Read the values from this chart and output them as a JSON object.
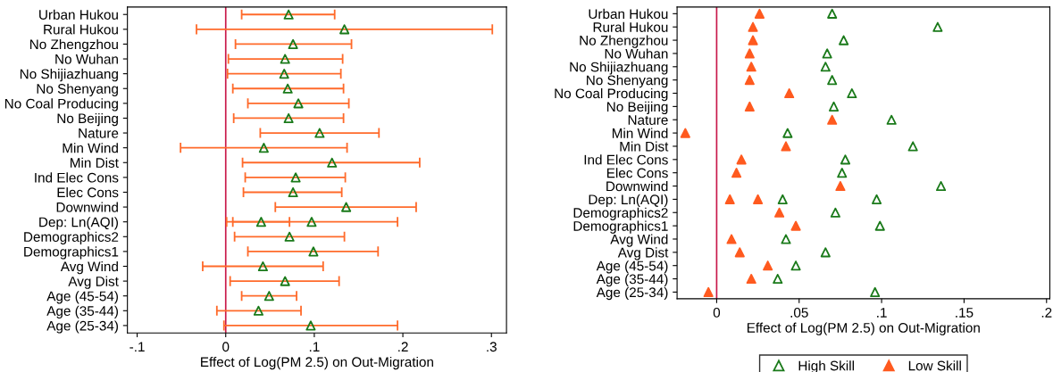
{
  "chart_data": [
    {
      "type": "scatter",
      "orientation": "horizontal",
      "xlabel": "Effect of Log(PM 2.5) on Out-Migration",
      "marker": "triangle",
      "grid": false,
      "legend": false,
      "categories": [
        "Urban Hukou",
        "Rural Hukou",
        "No Zhengzhou",
        "No Wuhan",
        "No Shijiazhuang",
        "No Shenyang",
        "No Coal Producing",
        "No Beijing",
        "Nature",
        "Min Wind",
        "Min Dist",
        "Ind Elec Cons",
        "Elec Cons",
        "Downwind",
        "Dep: Ln(AQI)",
        "Demographics2",
        "Demographics1",
        "Avg Wind",
        "Avg Dist",
        "Age (45-54)",
        "Age (35-44)",
        "Age (25-34)"
      ],
      "xlim": [
        -0.111,
        0.317
      ],
      "xticks": [
        {
          "value": -0.1,
          "label": "-.1"
        },
        0,
        {
          "value": 0.1,
          "label": ".1"
        },
        {
          "value": 0.2,
          "label": ".2"
        },
        {
          "value": 0.3,
          "label": ".3"
        }
      ],
      "ref_lines": [
        {
          "axis": "x",
          "value": 0,
          "color": "#c8184a"
        }
      ],
      "series": [
        {
          "color": "#1a7a1a",
          "values": [
            0.071,
            0.134,
            0.076,
            0.067,
            0.066,
            0.07,
            0.082,
            0.071,
            0.106,
            0.043,
            0.12,
            0.079,
            0.076,
            0.136,
            0.04,
            0.072,
            0.099,
            0.042,
            0.067,
            0.049,
            0.037,
            0.096
          ],
          "errors": [
            [
              0.018,
              0.123
            ],
            [
              -0.033,
              0.301
            ],
            [
              0.011,
              0.142
            ],
            [
              0.003,
              0.132
            ],
            [
              0.002,
              0.13
            ],
            [
              0.008,
              0.133
            ],
            [
              0.025,
              0.139
            ],
            [
              0.009,
              0.133
            ],
            [
              0.039,
              0.173
            ],
            [
              -0.051,
              0.137
            ],
            [
              0.019,
              0.219
            ],
            [
              0.022,
              0.135
            ],
            [
              0.02,
              0.131
            ],
            [
              0.056,
              0.215
            ],
            [
              0.008,
              0.072
            ],
            [
              0.01,
              0.134
            ],
            [
              0.025,
              0.172
            ],
            [
              -0.026,
              0.11
            ],
            [
              0.005,
              0.128
            ],
            [
              0.018,
              0.08
            ],
            [
              -0.01,
              0.085
            ],
            [
              -0.002,
              0.194
            ]
          ]
        },
        {
          "color": "#1a7a1a",
          "values": [
            null,
            null,
            null,
            null,
            null,
            null,
            null,
            null,
            null,
            null,
            null,
            null,
            null,
            null,
            0.097,
            null,
            null,
            null,
            null,
            null,
            null,
            null
          ],
          "errors": [
            null,
            null,
            null,
            null,
            null,
            null,
            null,
            null,
            null,
            null,
            null,
            null,
            null,
            null,
            [
              0.001,
              0.194
            ],
            null,
            null,
            null,
            null,
            null,
            null,
            null
          ]
        }
      ]
    },
    {
      "type": "scatter",
      "orientation": "horizontal",
      "xlabel": "Effect of Log(PM 2.5) on Out-Migration",
      "marker": "triangle",
      "grid": false,
      "legend": "bottom",
      "categories": [
        "Urban Hukou",
        "Rural Hukou",
        "No Zhengzhou",
        "No Wuhan",
        "No Shijiazhuang",
        "No Shenyang",
        "No Coal Producing",
        "No Beijing",
        "Nature",
        "Min Wind",
        "Min Dist",
        "Ind Elec Cons",
        "Elec Cons",
        "Downwind",
        "Dep: Ln(AQI)",
        "Demographics2",
        "Demographics1",
        "Avg Wind",
        "Avg Dist",
        "Age (45-54)",
        "Age (35-44)",
        "Age (25-34)"
      ],
      "xlim": [
        -0.024,
        0.202
      ],
      "xticks": [
        0,
        {
          "value": 0.05,
          "label": ".05"
        },
        {
          "value": 0.1,
          "label": ".1"
        },
        {
          "value": 0.15,
          "label": ".15"
        },
        {
          "value": 0.2,
          "label": ".2"
        }
      ],
      "ref_lines": [
        {
          "axis": "x",
          "value": 0,
          "color": "#c8184a"
        }
      ],
      "series": [
        {
          "name": "High Skill",
          "color": "#1a7a1a",
          "values": [
            0.07,
            0.134,
            0.077,
            0.067,
            0.066,
            0.07,
            0.082,
            0.071,
            0.106,
            0.043,
            0.119,
            0.078,
            0.076,
            0.136,
            0.04,
            0.072,
            0.099,
            0.042,
            0.066,
            0.048,
            0.037,
            0.096
          ]
        },
        {
          "name": "Low Skill",
          "color": "#ff5a1f",
          "values": [
            0.026,
            0.022,
            0.022,
            0.02,
            0.021,
            0.02,
            0.044,
            0.02,
            0.07,
            -0.019,
            0.042,
            0.015,
            0.012,
            0.075,
            0.008,
            0.038,
            0.048,
            0.009,
            0.014,
            0.031,
            0.021,
            -0.005
          ]
        },
        {
          "color": "#1a7a1a",
          "values": [
            null,
            null,
            null,
            null,
            null,
            null,
            null,
            null,
            null,
            null,
            null,
            null,
            null,
            null,
            0.097,
            null,
            null,
            null,
            null,
            null,
            null,
            null
          ]
        },
        {
          "color": "#ff5a1f",
          "values": [
            null,
            null,
            null,
            null,
            null,
            null,
            null,
            null,
            null,
            null,
            null,
            null,
            null,
            null,
            0.025,
            null,
            null,
            null,
            null,
            null,
            null,
            null
          ]
        }
      ]
    }
  ]
}
